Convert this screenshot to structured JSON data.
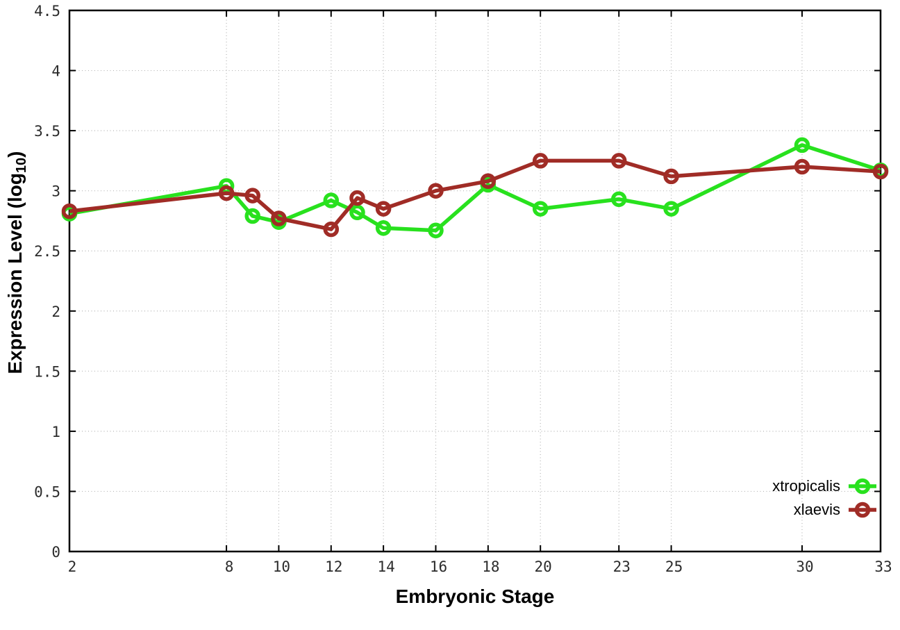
{
  "chart_data": {
    "type": "line",
    "title": "",
    "xlabel": "Embryonic Stage",
    "ylabel": {
      "pre": "Expression Level (log",
      "sub": "10",
      "post": ")"
    },
    "x": [
      2,
      8,
      9,
      10,
      12,
      13,
      14,
      16,
      18,
      20,
      23,
      25,
      30,
      33
    ],
    "series": [
      {
        "name": "xtropicalis",
        "color": "#28e11e",
        "values": [
          2.81,
          3.04,
          2.79,
          2.74,
          2.92,
          2.82,
          2.69,
          2.67,
          3.05,
          2.85,
          2.93,
          2.85,
          3.38,
          3.17
        ]
      },
      {
        "name": "xlaevis",
        "color": "#a02c26",
        "values": [
          2.83,
          2.98,
          2.96,
          2.77,
          2.68,
          2.94,
          2.85,
          3.0,
          3.08,
          3.25,
          3.25,
          3.12,
          3.2,
          3.16
        ]
      }
    ],
    "xlim": [
      2,
      33
    ],
    "ylim": [
      0,
      4.5
    ],
    "xticks": {
      "values": [
        2,
        8,
        10,
        12,
        14,
        16,
        18,
        20,
        23,
        25,
        30,
        33
      ],
      "labels": [
        "2",
        "8",
        "10",
        "12",
        "14",
        "16",
        "18",
        "20",
        "23",
        "25",
        "30",
        "33"
      ]
    },
    "yticks": {
      "values": [
        0,
        0.5,
        1,
        1.5,
        2,
        2.5,
        3,
        3.5,
        4,
        4.5
      ],
      "labels": [
        "0",
        "0.5",
        "1",
        "1.5",
        "2",
        "2.5",
        "3",
        "3.5",
        "4",
        "4.5"
      ]
    },
    "grid": true,
    "legend_position": "bottom-right",
    "marker": "open-circle",
    "colors": {
      "border": "#000000",
      "gridline": "#b4b4b4",
      "tick_label": "#2b2b2b",
      "background": "#ffffff"
    }
  }
}
